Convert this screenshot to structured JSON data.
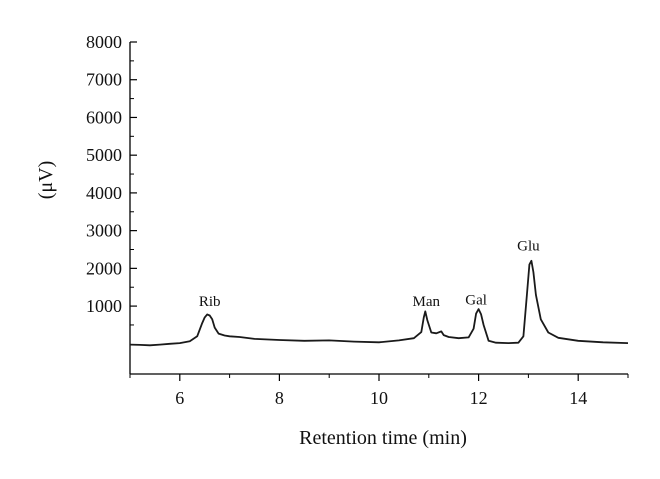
{
  "chart_data": {
    "type": "line",
    "title": "",
    "xlabel": "Retention time (min)",
    "ylabel": "(μV)",
    "xlim": [
      5,
      15
    ],
    "ylim": [
      -800,
      8000
    ],
    "x_ticks": [
      6,
      8,
      10,
      12,
      14
    ],
    "y_ticks": [
      1000,
      2000,
      3000,
      4000,
      5000,
      6000,
      7000,
      8000
    ],
    "grid": false,
    "legend": "none",
    "line_color": "#1a1a1a",
    "series": [
      {
        "x": [
          5.0,
          5.2,
          5.4,
          5.6,
          5.8,
          6.0,
          6.2,
          6.35,
          6.45,
          6.5,
          6.55,
          6.6,
          6.65,
          6.7,
          6.78,
          6.9,
          7.0,
          7.2,
          7.5,
          8.0,
          8.5,
          9.0,
          9.5,
          10.0,
          10.4,
          10.7,
          10.85,
          10.9,
          10.93,
          10.97,
          11.05,
          11.15,
          11.25,
          11.3,
          11.4,
          11.6,
          11.8,
          11.9,
          11.95,
          12.0,
          12.05,
          12.1,
          12.2,
          12.35,
          12.6,
          12.8,
          12.9,
          12.97,
          13.02,
          13.06,
          13.1,
          13.15,
          13.25,
          13.4,
          13.6,
          14.0,
          14.5,
          15.0
        ],
        "y": [
          -20,
          -30,
          -40,
          -20,
          0,
          20,
          70,
          200,
          550,
          700,
          780,
          750,
          650,
          430,
          270,
          220,
          200,
          180,
          130,
          100,
          80,
          90,
          60,
          40,
          90,
          150,
          310,
          700,
          860,
          630,
          300,
          280,
          330,
          230,
          180,
          150,
          170,
          400,
          800,
          920,
          780,
          500,
          80,
          30,
          20,
          30,
          200,
          1300,
          2100,
          2200,
          1900,
          1300,
          650,
          300,
          160,
          80,
          40,
          20
        ]
      }
    ],
    "annotations": [
      {
        "text": "Rib",
        "x": 6.6,
        "y": 1000
      },
      {
        "text": "Man",
        "x": 10.95,
        "y": 1000
      },
      {
        "text": "Gal",
        "x": 11.95,
        "y": 1040
      },
      {
        "text": "Glu",
        "x": 13.0,
        "y": 2480
      }
    ]
  }
}
